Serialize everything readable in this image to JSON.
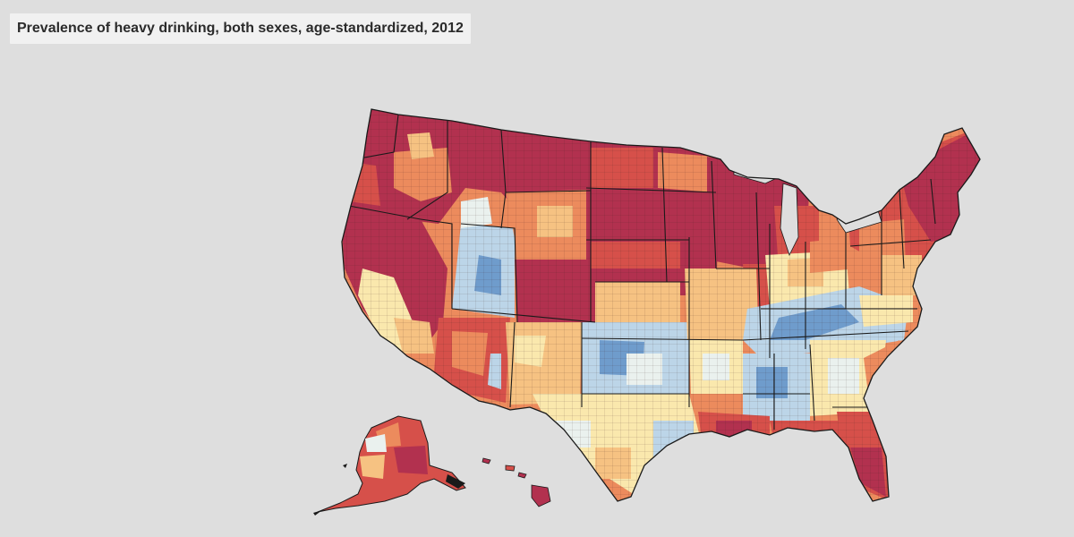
{
  "title": "Prevalence of heavy drinking, both sexes, age-standardized, 2012",
  "palette": {
    "background": "#dedede",
    "title_box": "#f1f1f1",
    "very_high": "#b2314f",
    "high": "#d6504a",
    "mid_high": "#ec8b5d",
    "mid": "#f6c282",
    "mid_low": "#fae8ad",
    "low": "#eaf1ee",
    "very_low": "#bcd5e8",
    "lowest": "#6f9ccc",
    "border": "#1a1a1a"
  },
  "legend_visible": false
}
